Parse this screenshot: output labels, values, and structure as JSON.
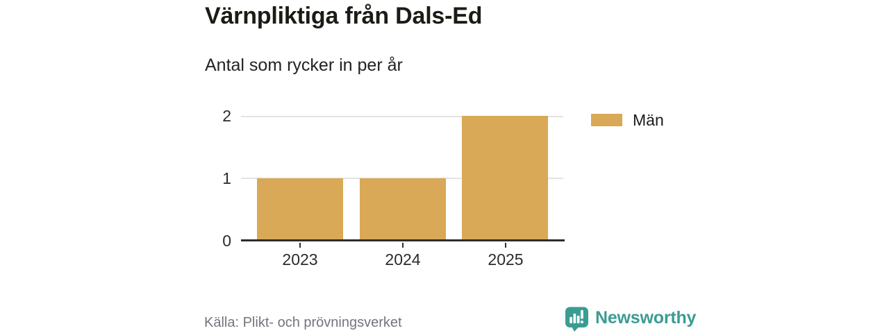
{
  "title": "Värnpliktiga från Dals-Ed",
  "subtitle": "Antal som rycker in per år",
  "source": "Källa: Plikt- och prövningsverket",
  "brand": {
    "name": "Newsworthy"
  },
  "legend": {
    "label": "Män"
  },
  "colors": {
    "bar": "#d9a957",
    "axis": "#2d2d2d",
    "grid": "#e3e3e3",
    "title_text": "#1c1b16",
    "muted_text": "#74747d",
    "brand_teal": "#3b9c92"
  },
  "chart_data": {
    "type": "bar",
    "categories": [
      "2023",
      "2024",
      "2025"
    ],
    "series": [
      {
        "name": "Män",
        "values": [
          1,
          1,
          2
        ]
      }
    ],
    "title": "Värnpliktiga från Dals-Ed",
    "subtitle": "Antal som rycker in per år",
    "xlabel": "",
    "ylabel": "",
    "yticks": [
      "0",
      "1",
      "2"
    ],
    "ylim": [
      0,
      2
    ],
    "grid": true,
    "legend_position": "right",
    "bar_color": "#d9a957"
  }
}
